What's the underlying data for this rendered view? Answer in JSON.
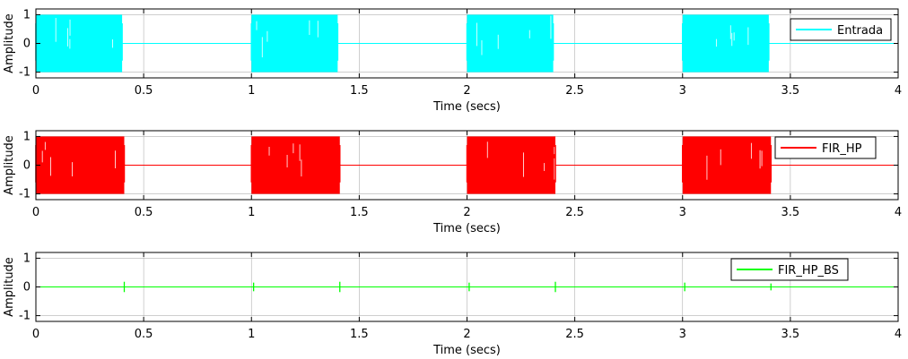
{
  "chart_data": [
    {
      "type": "line",
      "xlabel": "Time (secs)",
      "ylabel": "Amplitude",
      "xlim": [
        0,
        4
      ],
      "ylim": [
        -1.2,
        1.2
      ],
      "xticks": [
        0,
        0.5,
        1,
        1.5,
        2,
        2.5,
        3,
        3.5,
        4
      ],
      "xtick_labels": [
        "0",
        "0.5",
        "1",
        "1.5",
        "2",
        "2.5",
        "3",
        "3.5",
        "4"
      ],
      "yticks": [
        -1,
        0,
        1
      ],
      "ytick_labels": [
        "-1",
        "0",
        "1"
      ],
      "grid": true,
      "legend_position": "top-right",
      "series": [
        {
          "name": "Entrada",
          "color": "#00ffff",
          "bursts": [
            {
              "start": 0.0,
              "end": 0.4,
              "amplitude": 1.0
            },
            {
              "start": 1.0,
              "end": 1.4,
              "amplitude": 1.0
            },
            {
              "start": 2.0,
              "end": 2.4,
              "amplitude": 1.0
            },
            {
              "start": 3.0,
              "end": 3.4,
              "amplitude": 1.0
            }
          ],
          "baseline": 0
        }
      ]
    },
    {
      "type": "line",
      "xlabel": "Time (secs)",
      "ylabel": "Amplitude",
      "xlim": [
        0,
        4
      ],
      "ylim": [
        -1.2,
        1.2
      ],
      "xticks": [
        0,
        0.5,
        1,
        1.5,
        2,
        2.5,
        3,
        3.5,
        4
      ],
      "xtick_labels": [
        "0",
        "0.5",
        "1",
        "1.5",
        "2",
        "2.5",
        "3",
        "3.5",
        "4"
      ],
      "yticks": [
        -1,
        0,
        1
      ],
      "ytick_labels": [
        "-1",
        "0",
        "1"
      ],
      "grid": true,
      "legend_position": "top-right",
      "series": [
        {
          "name": "FIR_HP",
          "color": "#ff0000",
          "bursts": [
            {
              "start": 0.0,
              "end": 0.41,
              "amplitude": 1.0
            },
            {
              "start": 1.0,
              "end": 1.41,
              "amplitude": 1.0
            },
            {
              "start": 2.0,
              "end": 2.41,
              "amplitude": 1.0
            },
            {
              "start": 3.0,
              "end": 3.41,
              "amplitude": 1.0
            }
          ],
          "baseline": 0
        }
      ]
    },
    {
      "type": "line",
      "xlabel": "Time (secs)",
      "ylabel": "Amplitude",
      "xlim": [
        0,
        4
      ],
      "ylim": [
        -1.2,
        1.2
      ],
      "xticks": [
        0,
        0.5,
        1,
        1.5,
        2,
        2.5,
        3,
        3.5,
        4
      ],
      "xtick_labels": [
        "0",
        "0.5",
        "1",
        "1.5",
        "2",
        "2.5",
        "3",
        "3.5",
        "4"
      ],
      "yticks": [
        -1,
        0,
        1
      ],
      "ytick_labels": [
        "-1",
        "0",
        "1"
      ],
      "grid": true,
      "legend_position": "top-right",
      "series": [
        {
          "name": "FIR_HP_BS",
          "color": "#00ff00",
          "spikes": [
            {
              "t": 0.41,
              "amplitude": 0.18
            },
            {
              "t": 1.01,
              "amplitude": 0.15
            },
            {
              "t": 1.41,
              "amplitude": 0.18
            },
            {
              "t": 2.01,
              "amplitude": 0.15
            },
            {
              "t": 2.41,
              "amplitude": 0.18
            },
            {
              "t": 3.01,
              "amplitude": 0.15
            },
            {
              "t": 3.41,
              "amplitude": 0.12
            }
          ],
          "baseline": 0
        }
      ]
    }
  ]
}
